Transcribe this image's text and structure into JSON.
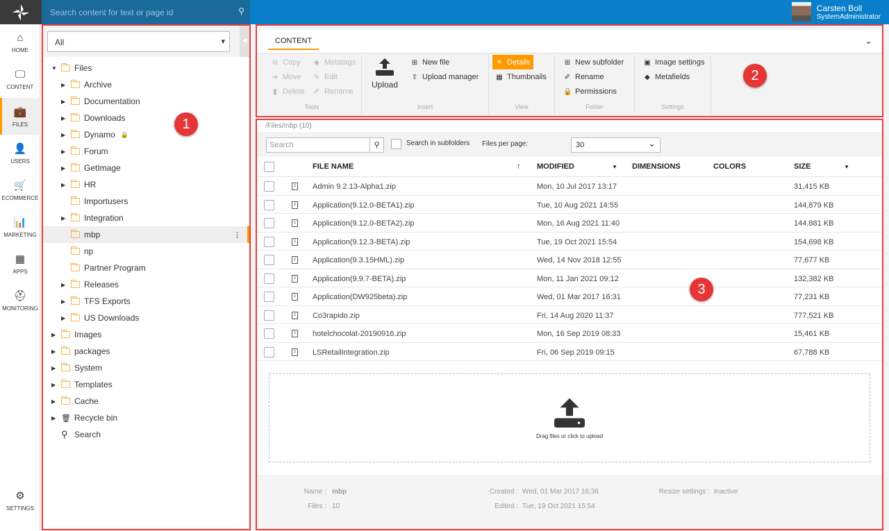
{
  "topbar": {
    "search_placeholder": "Search content for text or page id",
    "user_name": "Carsten Boll",
    "user_role": "SystemAdministrator"
  },
  "nav": [
    {
      "label": "HOME",
      "icon": "home-icon",
      "glyph": "⌂"
    },
    {
      "label": "CONTENT",
      "icon": "monitor-icon",
      "glyph": "🖵"
    },
    {
      "label": "FILES",
      "icon": "briefcase-icon",
      "glyph": "💼",
      "active": true
    },
    {
      "label": "USERS",
      "icon": "user-icon",
      "glyph": "👤"
    },
    {
      "label": "ECOMMERCE",
      "icon": "cart-icon",
      "glyph": "🛒"
    },
    {
      "label": "MARKETING",
      "icon": "bar-chart-icon",
      "glyph": "📊"
    },
    {
      "label": "APPS",
      "icon": "grid-icon",
      "glyph": "▦"
    },
    {
      "label": "MONITORING",
      "icon": "medkit-icon",
      "glyph": "⛑"
    }
  ],
  "settings_label": "SETTINGS",
  "left": {
    "filter": "All",
    "tree": [
      {
        "label": "Files",
        "level": 0,
        "expanded": true
      },
      {
        "label": "Archive",
        "level": 1,
        "arrow": true
      },
      {
        "label": "Documentation",
        "level": 1,
        "arrow": true
      },
      {
        "label": "Downloads",
        "level": 1,
        "arrow": true
      },
      {
        "label": "Dynamo",
        "level": 1,
        "arrow": true,
        "locked": true
      },
      {
        "label": "Forum",
        "level": 1,
        "arrow": true
      },
      {
        "label": "GetImage",
        "level": 1,
        "arrow": true
      },
      {
        "label": "HR",
        "level": 1,
        "arrow": true
      },
      {
        "label": "Importusers",
        "level": 1
      },
      {
        "label": "Integration",
        "level": 1,
        "arrow": true
      },
      {
        "label": "mbp",
        "level": 1,
        "selected": true
      },
      {
        "label": "np",
        "level": 1
      },
      {
        "label": "Partner Program",
        "level": 1
      },
      {
        "label": "Releases",
        "level": 1,
        "arrow": true
      },
      {
        "label": "TFS Exports",
        "level": 1,
        "arrow": true
      },
      {
        "label": "US Downloads",
        "level": 1,
        "arrow": true
      },
      {
        "label": "Images",
        "level": 0,
        "arrow": true
      },
      {
        "label": "packages",
        "level": 0,
        "arrow": true
      },
      {
        "label": "System",
        "level": 0,
        "arrow": true
      },
      {
        "label": "Templates",
        "level": 0,
        "arrow": true
      },
      {
        "label": "Cache",
        "level": 0,
        "arrow": true
      },
      {
        "label": "Recycle bin",
        "level": 0,
        "arrow": true,
        "icon": "trash"
      },
      {
        "label": "Search",
        "level": 0,
        "icon": "search"
      }
    ]
  },
  "badges": [
    "1",
    "2",
    "3"
  ],
  "ribbon": {
    "tab": "CONTENT",
    "tools": {
      "label": "Tools",
      "copy": "Copy",
      "move": "Move",
      "delete": "Delete",
      "metatags": "Metatags",
      "edit": "Edit",
      "rename": "Rename"
    },
    "insert": {
      "label": "Insert",
      "upload": "Upload",
      "new_file": "New file",
      "upload_manager": "Upload manager"
    },
    "view": {
      "label": "View",
      "details": "Details",
      "thumbnails": "Thumbnails"
    },
    "folder": {
      "label": "Folder",
      "new_subfolder": "New subfolder",
      "rename": "Rename",
      "permissions": "Permissions"
    },
    "settings": {
      "label": "Settings",
      "image_settings": "Image settings",
      "metafields": "Metafields"
    }
  },
  "main": {
    "path": "/Files/mbp (10)",
    "search_placeholder": "Search",
    "search_subfolders": "Search in subfolders",
    "files_per_page_label": "Files per page:",
    "files_per_page": "30",
    "columns": {
      "name": "FILE NAME",
      "modified": "MODIFIED",
      "dimensions": "DIMENSIONS",
      "colors": "COLORS",
      "size": "SIZE"
    },
    "files": [
      {
        "name": "Admin 9.2.13-Alpha1.zip",
        "modified": "Mon, 10 Jul 2017 13:17",
        "size": "31,415 KB"
      },
      {
        "name": "Application(9.12.0-BETA1).zip",
        "modified": "Tue, 10 Aug 2021 14:55",
        "size": "144,879 KB"
      },
      {
        "name": "Application(9.12.0-BETA2).zip",
        "modified": "Mon, 16 Aug 2021 11:40",
        "size": "144,881 KB"
      },
      {
        "name": "Application(9.12.3-BETA).zip",
        "modified": "Tue, 19 Oct 2021 15:54",
        "size": "154,698 KB"
      },
      {
        "name": "Application(9.3.15HML).zip",
        "modified": "Wed, 14 Nov 2018 12:55",
        "size": "77,677 KB"
      },
      {
        "name": "Application(9.9.7-BETA).zip",
        "modified": "Mon, 11 Jan 2021 09:12",
        "size": "132,382 KB"
      },
      {
        "name": "Application(DW925beta).zip",
        "modified": "Wed, 01 Mar 2017 16:31",
        "size": "77,231 KB"
      },
      {
        "name": "Co3rapido.zip",
        "modified": "Fri, 14 Aug 2020 11:37",
        "size": "777,521 KB"
      },
      {
        "name": "hotelchocolat-20190916.zip",
        "modified": "Mon, 16 Sep 2019 08:33",
        "size": "15,461 KB"
      },
      {
        "name": "LSRetailIntegration.zip",
        "modified": "Fri, 06 Sep 2019 09:15",
        "size": "67,788 KB"
      }
    ],
    "drop_text": "Drag files or click to upload",
    "info": {
      "name_label": "Name :",
      "name": "mbp",
      "files_label": "Files :",
      "files": "10",
      "created_label": "Created :",
      "created": "Wed, 01 Mar 2017 16:36",
      "edited_label": "Edited :",
      "edited": "Tue, 19 Oct 2021 15:54",
      "resize_label": "Resize settings :",
      "resize": "Inactive"
    }
  },
  "colors": {
    "accent": "#ff9900",
    "topbar": "#0a7fc9",
    "annotation": "#e53e3e"
  }
}
